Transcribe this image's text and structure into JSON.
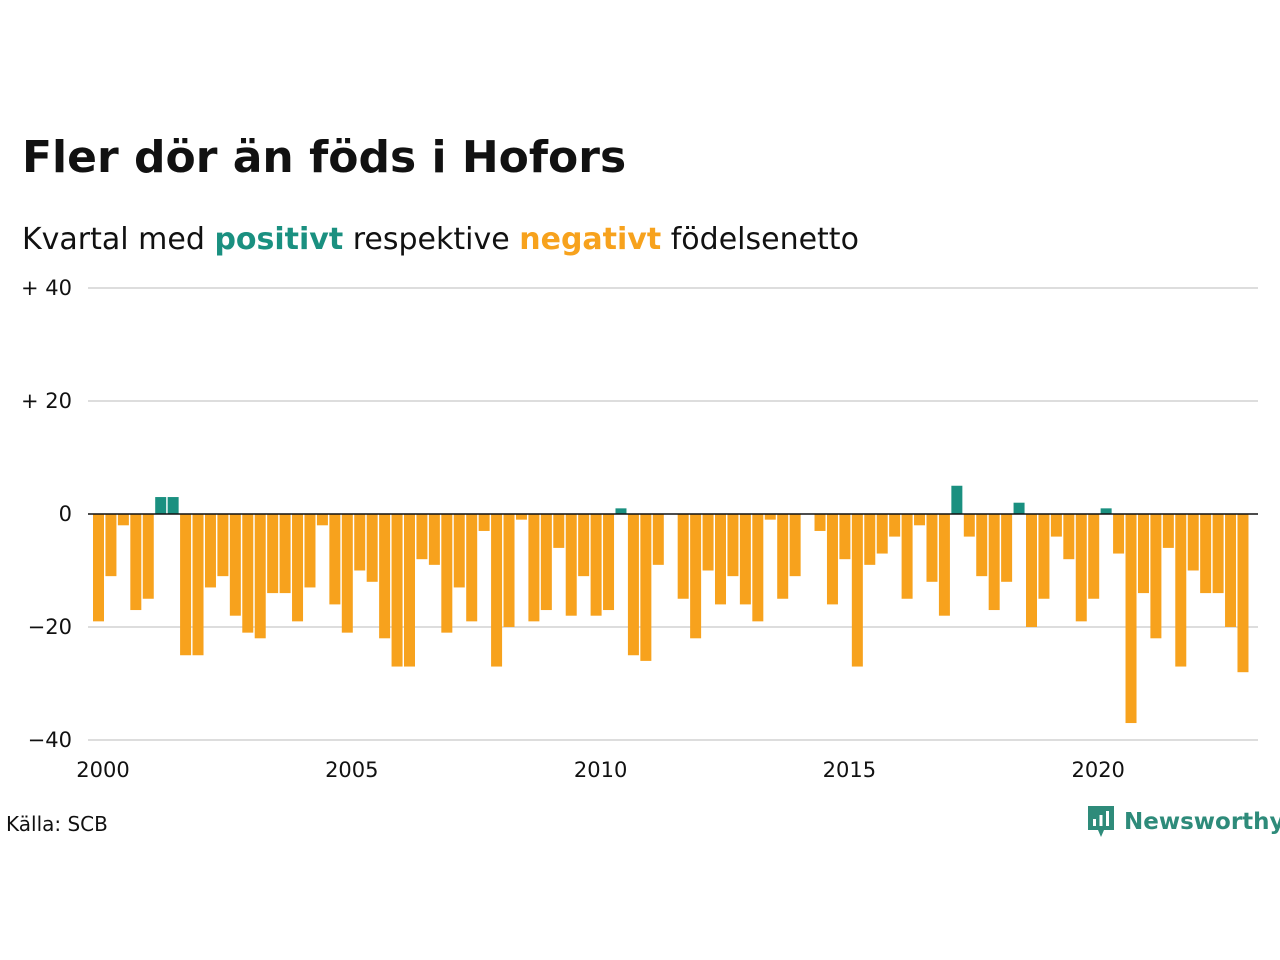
{
  "title": "Fler dör än föds i Hofors",
  "subtitle": {
    "prefix": "Kvartal med",
    "positive": "positivt",
    "middle": "respektive",
    "negative": "negativt",
    "suffix": "födelsenetto"
  },
  "source": "Källa: SCB",
  "logo": {
    "name": "Newsworthy",
    "icon": "newsworthy-logo-icon"
  },
  "colors": {
    "positive": "#1a9080",
    "negative": "#f7a21d",
    "grid": "#dddddd",
    "axis": "#111111"
  },
  "chart_data": {
    "type": "bar",
    "x_start": "2000 Q1",
    "ylim": [
      -40,
      40
    ],
    "y_ticks": [
      {
        "value": 40,
        "label": "+ 40"
      },
      {
        "value": 20,
        "label": "+ 20"
      },
      {
        "value": 0,
        "label": "0"
      },
      {
        "value": -20,
        "label": "−20"
      },
      {
        "value": -40,
        "label": "−40"
      }
    ],
    "x_ticks": [
      "2000",
      "2005",
      "2010",
      "2015",
      "2020"
    ],
    "grid": true,
    "values": [
      -19,
      -11,
      -2,
      -17,
      -15,
      3,
      3,
      -25,
      -25,
      -13,
      -11,
      -18,
      -21,
      -22,
      -14,
      -14,
      -19,
      -13,
      -2,
      -16,
      -21,
      -10,
      -12,
      -22,
      -27,
      -27,
      -8,
      -9,
      -21,
      -13,
      -19,
      -3,
      -27,
      -20,
      -1,
      -19,
      -17,
      -6,
      -18,
      -11,
      -18,
      -17,
      1,
      -25,
      -26,
      -9,
      0,
      -15,
      -22,
      -10,
      -16,
      -11,
      -16,
      -19,
      -1,
      -15,
      -11,
      0,
      -3,
      -16,
      -8,
      -27,
      -9,
      -7,
      -4,
      -15,
      -2,
      -12,
      -18,
      5,
      -4,
      -11,
      -17,
      -12,
      2,
      -20,
      -15,
      -4,
      -8,
      -19,
      -15,
      1,
      -7,
      -37,
      -14,
      -22,
      -6,
      -27,
      -10,
      -14,
      -14,
      -20,
      -28
    ]
  }
}
